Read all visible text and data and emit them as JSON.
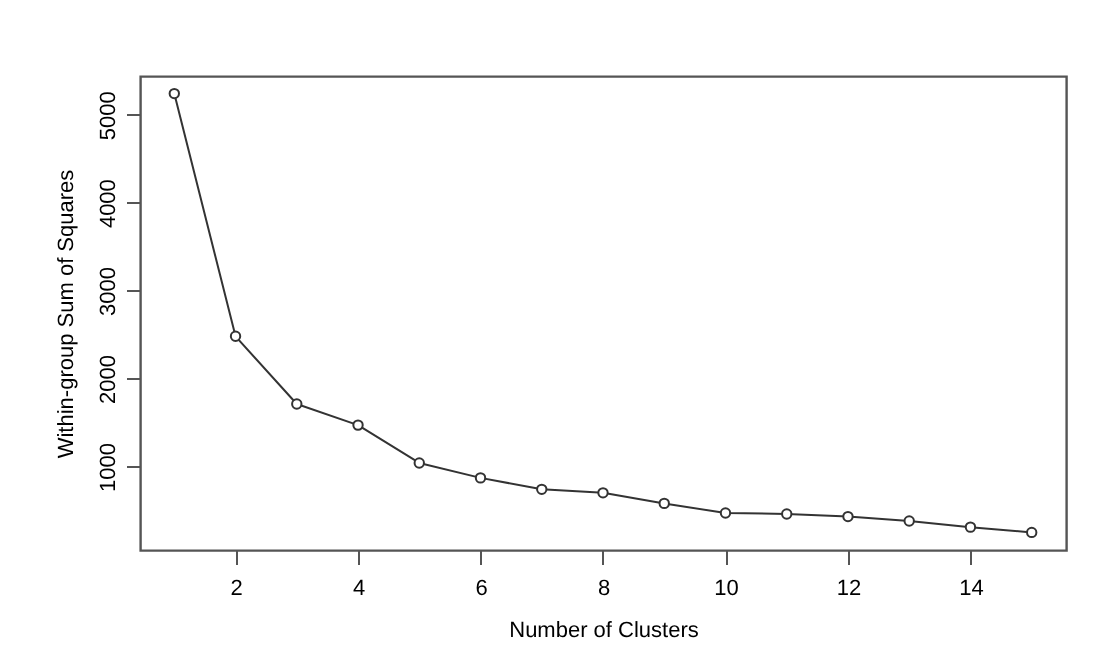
{
  "chart_data": {
    "type": "line",
    "xlabel": "Number of Clusters",
    "ylabel": "Within-group Sum of Squares",
    "x": [
      1,
      2,
      3,
      4,
      5,
      6,
      7,
      8,
      9,
      10,
      11,
      12,
      13,
      14,
      15
    ],
    "series": [
      {
        "color": "#333333",
        "values": [
          5240,
          2480,
          1710,
          1470,
          1040,
          870,
          740,
          700,
          580,
          470,
          460,
          430,
          380,
          310,
          250
        ]
      }
    ],
    "xlim": [
      0.44,
      15.56
    ],
    "xticks": [
      2,
      4,
      6,
      8,
      10,
      12,
      14
    ],
    "ylim": [
      50,
      5440
    ],
    "yticks": [
      1000,
      2000,
      3000,
      4000,
      5000
    ],
    "marker": "circle",
    "line_style": "solid",
    "grid": false
  }
}
